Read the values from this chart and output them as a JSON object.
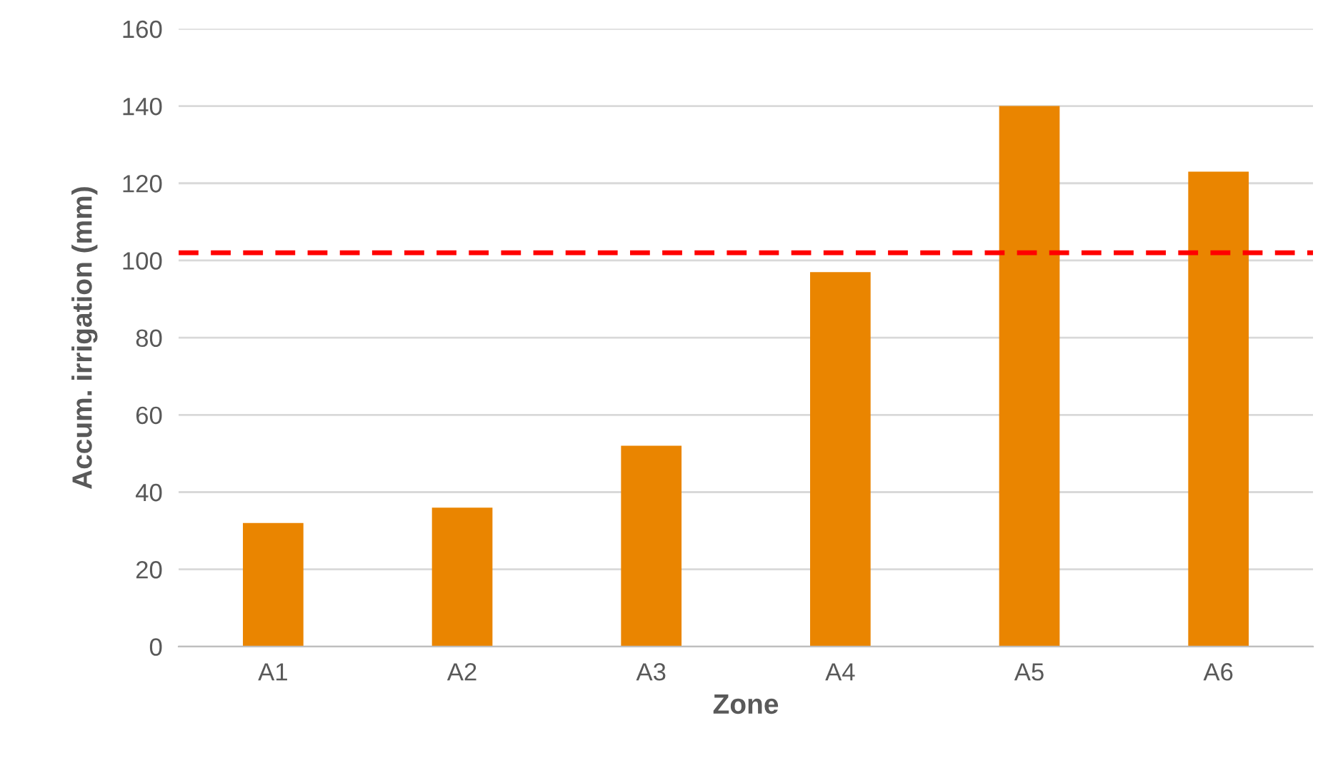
{
  "chart_data": {
    "type": "bar",
    "xlabel": "Zone",
    "ylabel": "Accum. irrigation (mm)",
    "categories": [
      "A1",
      "A2",
      "A3",
      "A4",
      "A5",
      "A6"
    ],
    "values": [
      32,
      36,
      52,
      97,
      140,
      123
    ],
    "color": "#ea8500",
    "ylim": [
      0,
      160
    ],
    "yticks": [
      0,
      20,
      40,
      60,
      80,
      100,
      120,
      140,
      160
    ],
    "grid": "y",
    "ref_lines": [
      {
        "axis": "y",
        "value": 102,
        "color": "#ff0000",
        "line_style": "dashed"
      }
    ]
  }
}
